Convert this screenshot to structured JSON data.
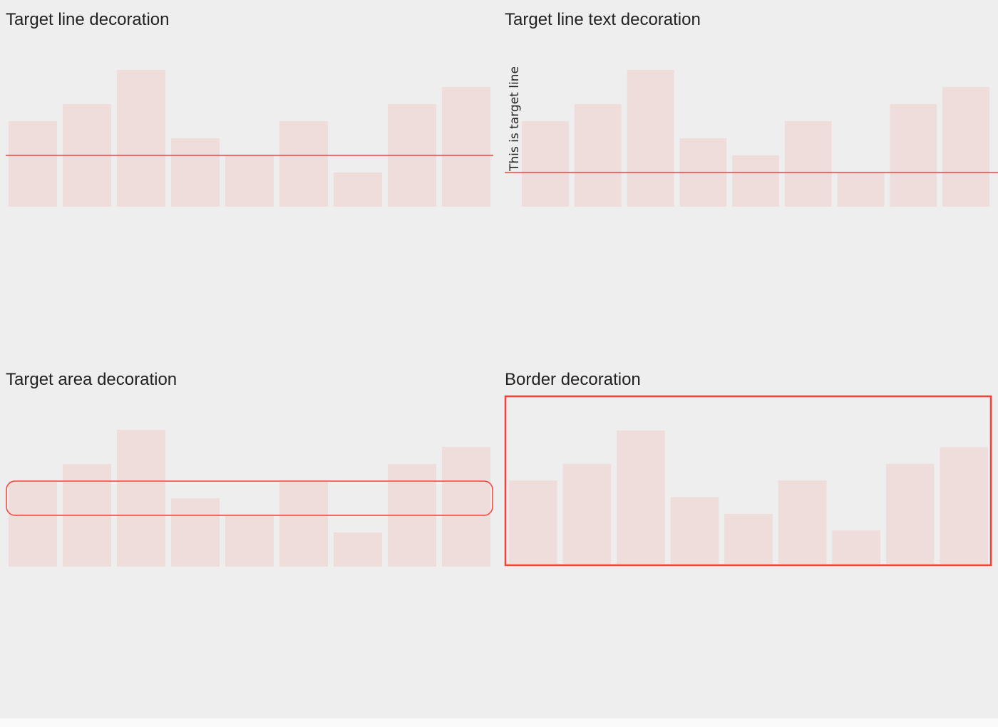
{
  "colors": {
    "background": "#eeeeee",
    "bar": "#efdddb",
    "accent": "#f44336",
    "text": "#222222"
  },
  "chart_data": [
    {
      "type": "bar",
      "title": "Target line decoration",
      "values": [
        5,
        6,
        8,
        4,
        3,
        5,
        2,
        6,
        7
      ],
      "ylim": [
        0,
        8
      ],
      "decoration": {
        "kind": "target-line",
        "value": 3
      }
    },
    {
      "type": "bar",
      "title": "Target line text decoration",
      "values": [
        5,
        6,
        8,
        4,
        3,
        5,
        2,
        6,
        7
      ],
      "ylim": [
        0,
        8
      ],
      "decoration": {
        "kind": "target-line-text",
        "value": 2,
        "text": "This is target line"
      }
    },
    {
      "type": "bar",
      "title": "Target area decoration",
      "values": [
        5,
        6,
        8,
        4,
        3,
        5,
        2,
        6,
        7
      ],
      "ylim": [
        0,
        8
      ],
      "decoration": {
        "kind": "target-area",
        "from": 3,
        "to": 5
      }
    },
    {
      "type": "bar",
      "title": "Border decoration",
      "values": [
        5,
        6,
        8,
        4,
        3,
        5,
        2,
        6,
        7
      ],
      "ylim": [
        0,
        8
      ],
      "decoration": {
        "kind": "border"
      }
    }
  ]
}
